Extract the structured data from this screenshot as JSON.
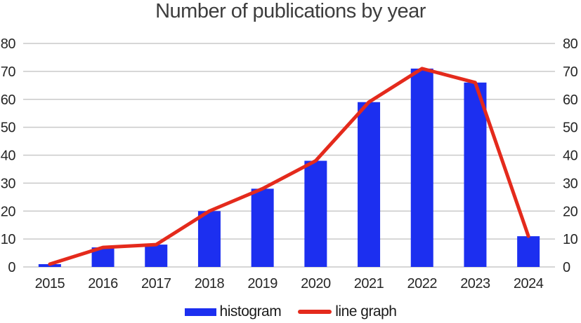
{
  "chart_data": {
    "type": "bar",
    "title": "Number of publications by year",
    "categories": [
      "2015",
      "2016",
      "2017",
      "2018",
      "2019",
      "2020",
      "2021",
      "2022",
      "2023",
      "2024"
    ],
    "series": [
      {
        "name": "histogram",
        "type": "bar",
        "color": "#1c2ff0",
        "values": [
          1,
          7,
          8,
          20,
          28,
          38,
          59,
          71,
          66,
          11
        ]
      },
      {
        "name": "line graph",
        "type": "line",
        "color": "#e42a1c",
        "values": [
          1,
          7,
          8,
          20,
          28,
          38,
          59,
          71,
          66,
          11
        ]
      }
    ],
    "xlabel": "",
    "ylabel": "",
    "ylim": [
      0,
      80
    ],
    "yticks": [
      0,
      10,
      20,
      30,
      40,
      50,
      60,
      70,
      80
    ],
    "grid": true,
    "gridline_color": "#c9c9c9",
    "tick_label_color": "#262626",
    "title_color": "#3d3d3d",
    "legend_position": "bottom",
    "dual_y_axis": true
  }
}
